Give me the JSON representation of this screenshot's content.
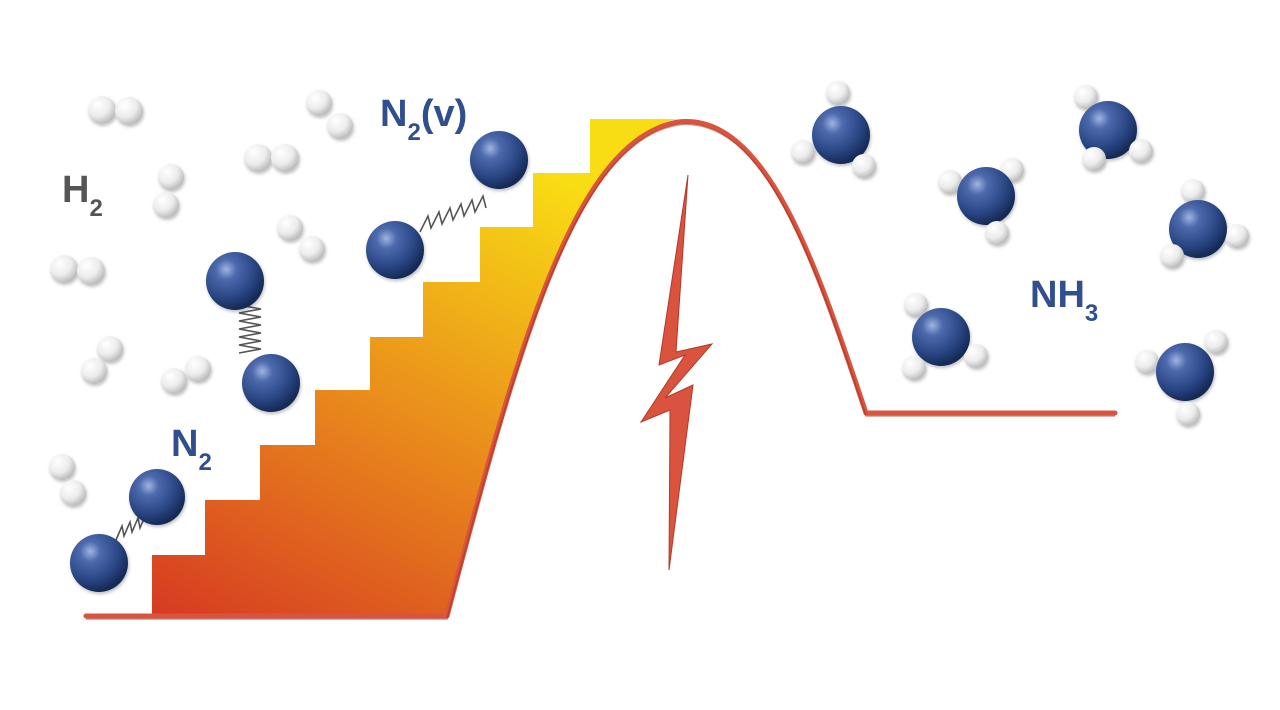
{
  "labels": {
    "h2": {
      "main": "H",
      "sub": "2"
    },
    "n2": {
      "main": "N",
      "sub": "2"
    },
    "n2v": {
      "main": "N",
      "sub": "2",
      "tail": "(v)"
    },
    "nh3": {
      "main": "NH",
      "sub": "3"
    }
  },
  "colors": {
    "nitrogen": "#2c4c8e",
    "hydrogen": "#f2f2f2",
    "curve": "#d9533f",
    "lightning": "#d9533f",
    "stairs_bottom": "#d63a22",
    "stairs_top": "#f7d816",
    "label_blue": "#2f4f8f",
    "label_gray": "#555555"
  },
  "icons": {
    "lightning": "lightning-bolt-icon",
    "spring": "spring-bond-icon"
  }
}
